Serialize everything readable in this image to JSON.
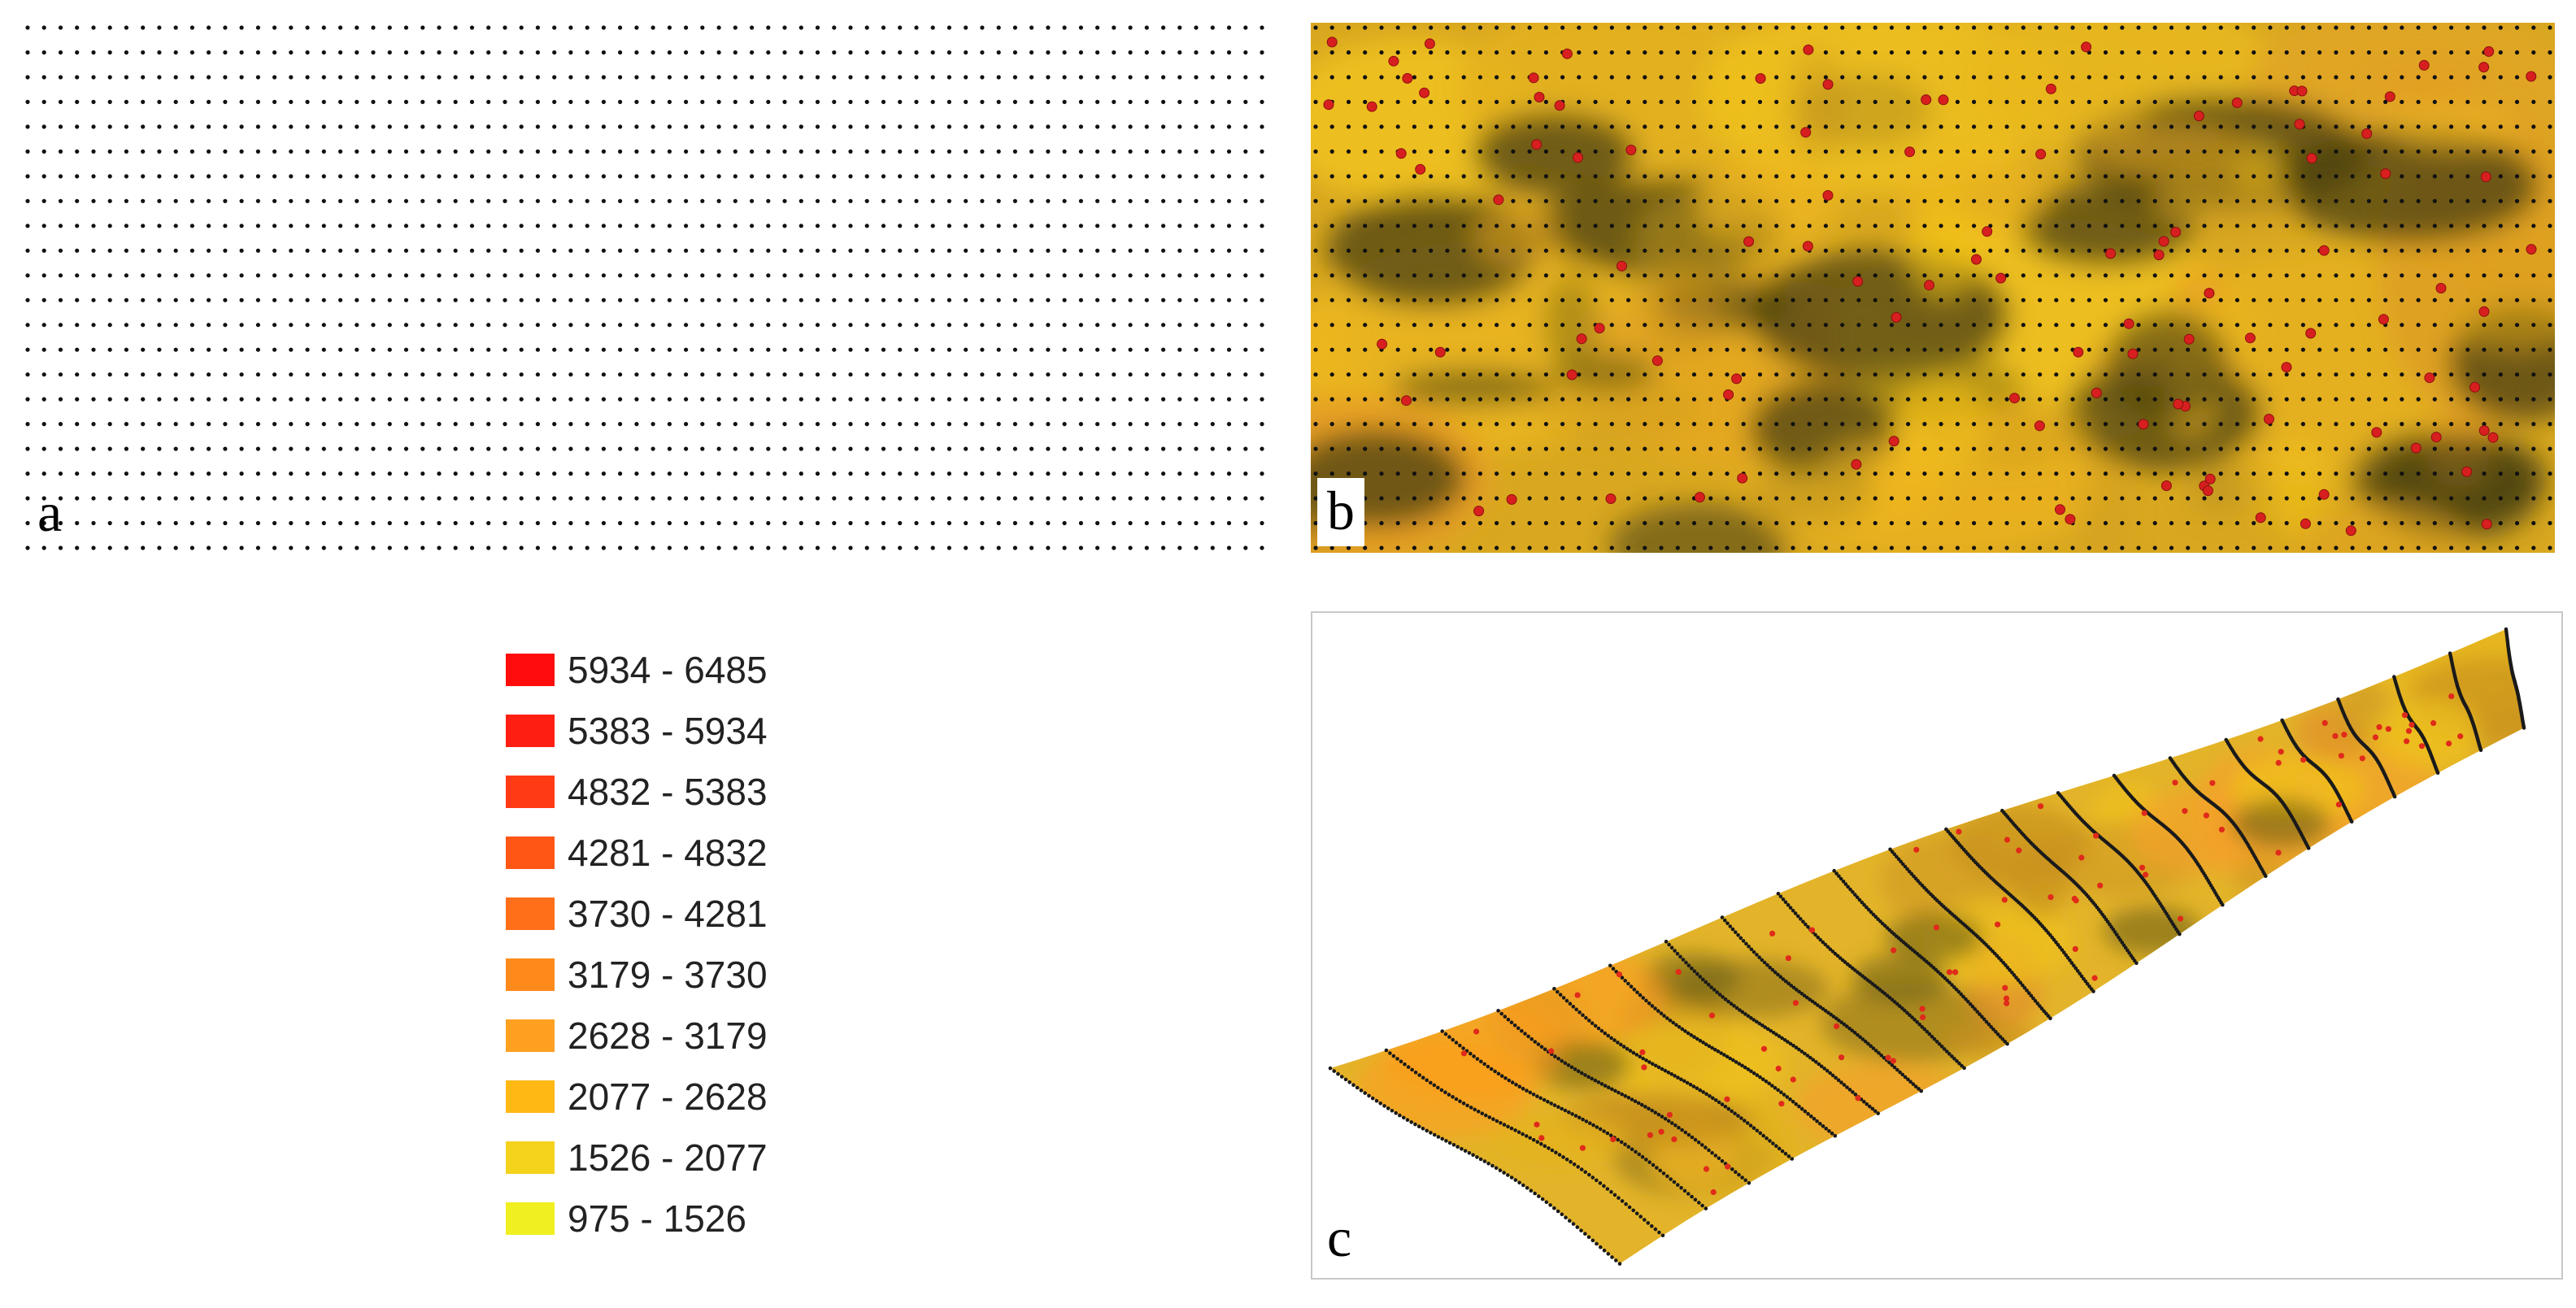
{
  "panels": {
    "a": {
      "label": "a"
    },
    "b": {
      "label": "b"
    },
    "c": {
      "label": "c"
    }
  },
  "legend": {
    "items": [
      {
        "range": "5934 - 6485",
        "color": "#ff0d0d"
      },
      {
        "range": "5383 - 5934",
        "color": "#ff1f12"
      },
      {
        "range": "4832 - 5383",
        "color": "#ff3a14"
      },
      {
        "range": "4281 - 4832",
        "color": "#ff5616"
      },
      {
        "range": "3730 - 4281",
        "color": "#ff6e18"
      },
      {
        "range": "3179 - 3730",
        "color": "#ff8a1c"
      },
      {
        "range": "2628 - 3179",
        "color": "#ffa020"
      },
      {
        "range": "2077 - 2628",
        "color": "#ffb814"
      },
      {
        "range": "1526 - 2077",
        "color": "#f5d21c"
      },
      {
        "range": "975 - 1526",
        "color": "#f0f020"
      }
    ]
  }
}
